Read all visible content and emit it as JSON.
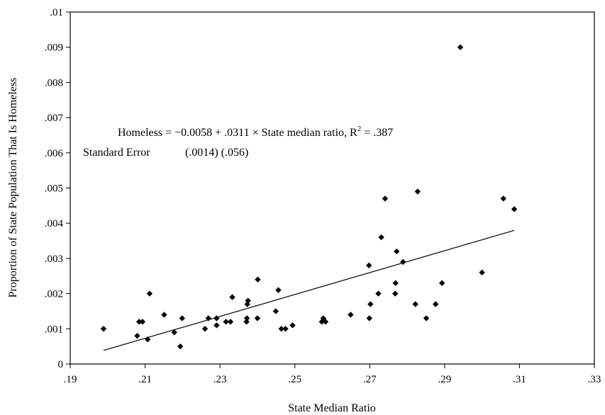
{
  "chart_data": {
    "type": "scatter",
    "xlabel": "State Median Ratio",
    "ylabel": "Proportion of State Population That Is Homeless",
    "xlim": [
      0.19,
      0.33
    ],
    "ylim": [
      0,
      0.01
    ],
    "x_ticks": [
      0.19,
      0.21,
      0.23,
      0.25,
      0.27,
      0.29,
      0.31,
      0.33
    ],
    "x_tick_labels": [
      ".19",
      ".21",
      ".23",
      ".25",
      ".27",
      ".29",
      ".31",
      ".33"
    ],
    "y_ticks": [
      0,
      0.001,
      0.002,
      0.003,
      0.004,
      0.005,
      0.006,
      0.007,
      0.008,
      0.009,
      0.01
    ],
    "y_tick_labels": [
      "0",
      ".001",
      ".002",
      ".003",
      ".004",
      ".005",
      ".006",
      ".007",
      ".008",
      ".009",
      ".01"
    ],
    "grid": false,
    "marker": "diamond",
    "points": [
      [
        0.1989,
        0.001
      ],
      [
        0.2079,
        0.0008
      ],
      [
        0.2084,
        0.0012
      ],
      [
        0.2093,
        0.0012
      ],
      [
        0.2107,
        0.0007
      ],
      [
        0.2112,
        0.002
      ],
      [
        0.2151,
        0.0014
      ],
      [
        0.2178,
        0.0009
      ],
      [
        0.2194,
        0.0005
      ],
      [
        0.2199,
        0.0013
      ],
      [
        0.226,
        0.001
      ],
      [
        0.2269,
        0.0013
      ],
      [
        0.2291,
        0.0011
      ],
      [
        0.2291,
        0.0013
      ],
      [
        0.2316,
        0.0012
      ],
      [
        0.2328,
        0.0012
      ],
      [
        0.2333,
        0.0019
      ],
      [
        0.2371,
        0.0012
      ],
      [
        0.2372,
        0.0013
      ],
      [
        0.2373,
        0.0017
      ],
      [
        0.2375,
        0.0018
      ],
      [
        0.24,
        0.0013
      ],
      [
        0.2401,
        0.0024
      ],
      [
        0.2449,
        0.0015
      ],
      [
        0.2456,
        0.0021
      ],
      [
        0.2464,
        0.001
      ],
      [
        0.2475,
        0.001
      ],
      [
        0.2494,
        0.0011
      ],
      [
        0.2572,
        0.0012
      ],
      [
        0.2576,
        0.0013
      ],
      [
        0.2582,
        0.0012
      ],
      [
        0.2649,
        0.0014
      ],
      [
        0.2698,
        0.0028
      ],
      [
        0.2699,
        0.0013
      ],
      [
        0.2702,
        0.0017
      ],
      [
        0.2723,
        0.002
      ],
      [
        0.2731,
        0.0036
      ],
      [
        0.2741,
        0.0047
      ],
      [
        0.2768,
        0.002
      ],
      [
        0.2769,
        0.0023
      ],
      [
        0.2772,
        0.0032
      ],
      [
        0.2789,
        0.0029
      ],
      [
        0.2822,
        0.0017
      ],
      [
        0.2828,
        0.0049
      ],
      [
        0.2851,
        0.0013
      ],
      [
        0.2876,
        0.0017
      ],
      [
        0.2893,
        0.0023
      ],
      [
        0.2942,
        0.009
      ],
      [
        0.3,
        0.0026
      ],
      [
        0.3057,
        0.0047
      ],
      [
        0.3086,
        0.0044
      ]
    ],
    "trend_line": {
      "intercept": -0.0058,
      "slope": 0.0311,
      "x_start": 0.1989,
      "x_end": 0.3086
    },
    "annotation_line1_main": "Homeless = −0.0058 + .0311 × State median ratio, R",
    "annotation_line1_sup": "2",
    "annotation_line1_tail": " = .387",
    "annotation_line2_label": "Standard Error",
    "annotation_line2_values": "(.0014)  (.056)"
  }
}
